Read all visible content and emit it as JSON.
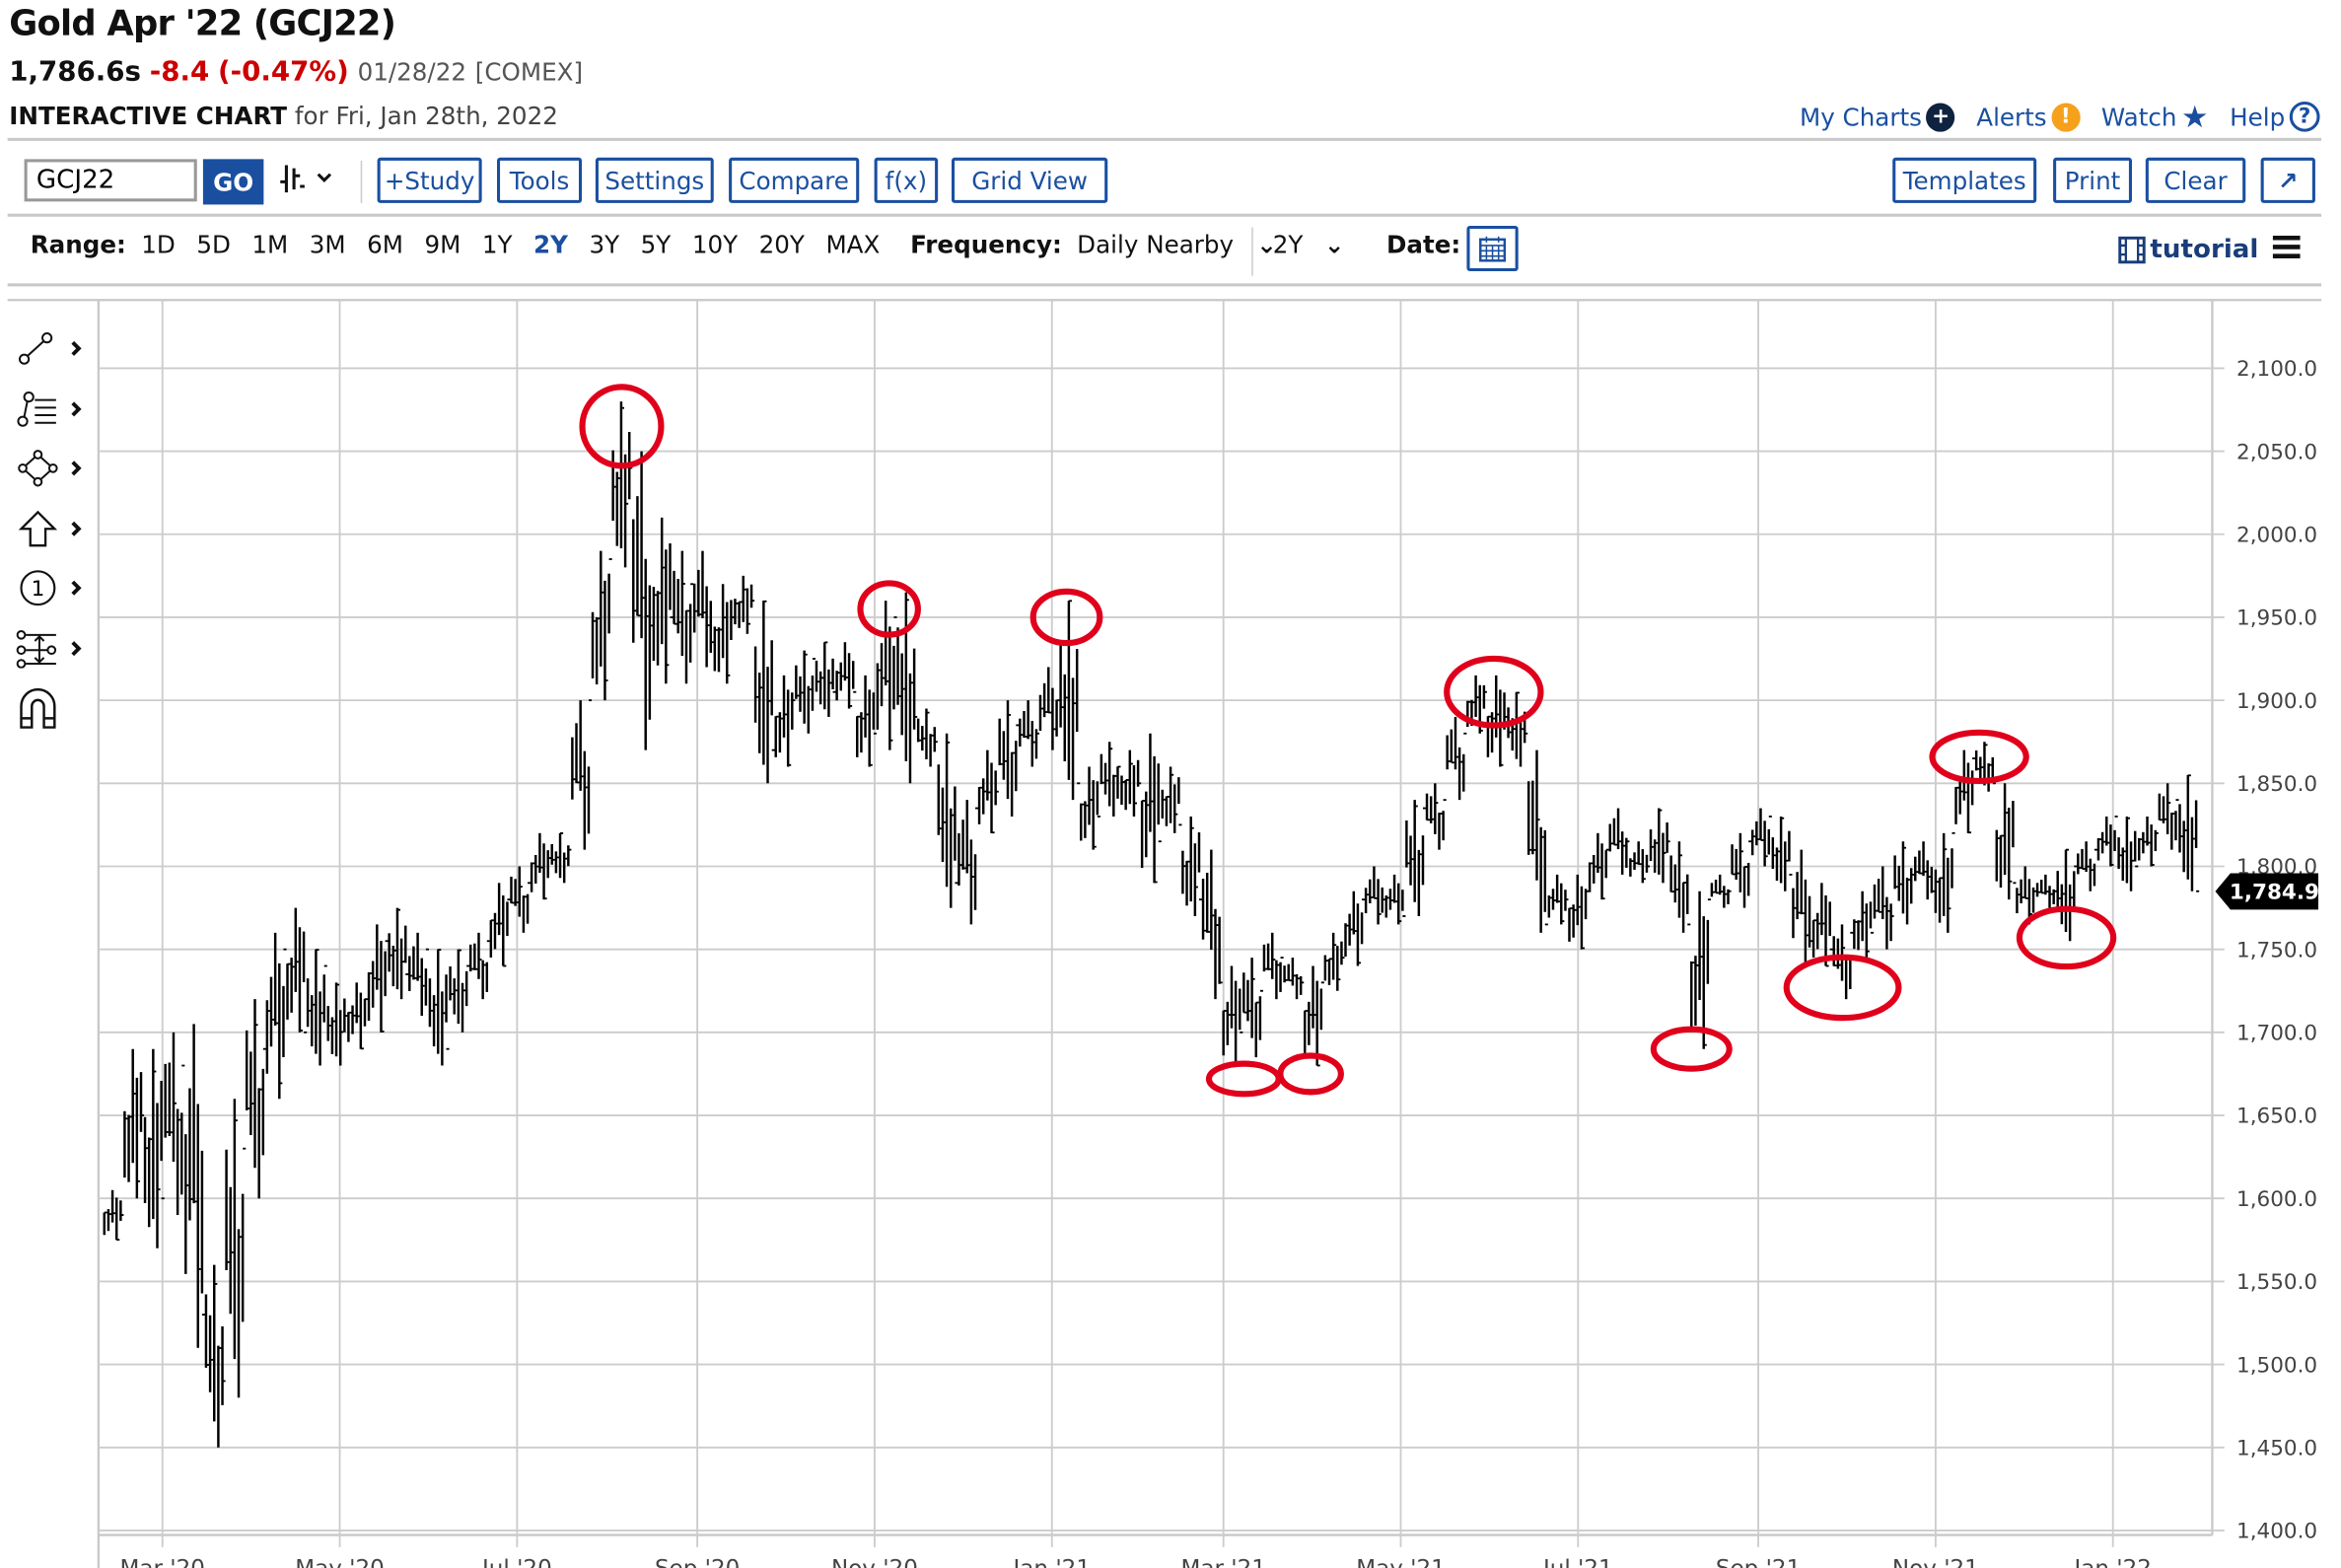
{
  "header": {
    "title": "Gold Apr '22 (GCJ22)",
    "last": "1,786.6s",
    "change": "-8.4",
    "change_pct": "(-0.47%)",
    "date": "01/28/22",
    "exchange": "[COMEX]",
    "subtitle_bold": "INTERACTIVE CHART",
    "subtitle_rest": "for Fri, Jan 28th, 2022"
  },
  "top_links": [
    {
      "label": "My Charts",
      "icon": "plus-circle-icon",
      "color": "#0f2340"
    },
    {
      "label": "Alerts",
      "icon": "exclamation-circle-icon",
      "color": "#f5a11c"
    },
    {
      "label": "Watch",
      "icon": "star-icon",
      "color": "#1a4fa0"
    },
    {
      "label": "Help",
      "icon": "question-circle-icon",
      "color": "#1a4fa0"
    }
  ],
  "toolbar": {
    "symbol_value": "GCJ22",
    "go_label": "GO",
    "chart_type_icon": "ohlc-bars-icon",
    "buttons": [
      "+Study",
      "Tools",
      "Settings",
      "Compare",
      "f(x)",
      "Grid View"
    ],
    "right_buttons": [
      "Templates",
      "Print",
      "Clear"
    ],
    "expand_icon": "expand-arrow-icon"
  },
  "range": {
    "label": "Range:",
    "options": [
      "1D",
      "5D",
      "1M",
      "3M",
      "6M",
      "9M",
      "1Y",
      "2Y",
      "3Y",
      "5Y",
      "10Y",
      "20Y",
      "MAX"
    ],
    "active": "2Y",
    "frequency_label": "Frequency:",
    "frequency_value": "Daily Nearby",
    "period_value": "2Y",
    "date_label": "Date:",
    "tutorial_label": "tutorial"
  },
  "colors": {
    "accent": "#1a4fa0",
    "negative": "#cc0000",
    "annotation": "#e0001b",
    "bars": "#000000",
    "grid": "#cccccc"
  },
  "chart_data": {
    "type": "ohlc-bar",
    "title": "",
    "ylim": [
      1400,
      2120
    ],
    "y_ticks": [
      "2,100.0",
      "2,050.0",
      "2,000.0",
      "1,950.0",
      "1,900.0",
      "1,850.0",
      "1,800.0",
      "1,750.0",
      "1,700.0",
      "1,650.0",
      "1,600.0",
      "1,550.0",
      "1,500.0",
      "1,450.0",
      "1,400.0"
    ],
    "y_tick_values": [
      2100,
      2050,
      2000,
      1950,
      1900,
      1850,
      1800,
      1750,
      1700,
      1650,
      1600,
      1550,
      1500,
      1450,
      1400
    ],
    "x_ticks": [
      "Mar '20",
      "May '20",
      "Jul '20",
      "Sep '20",
      "Nov '20",
      "Jan '21",
      "Mar '21",
      "May '21",
      "Jul '21",
      "Sep '21",
      "Nov '21",
      "Jan '22"
    ],
    "x_tick_dates": [
      "2020-03-01",
      "2020-05-01",
      "2020-07-01",
      "2020-09-01",
      "2020-11-01",
      "2021-01-01",
      "2021-03-01",
      "2021-05-01",
      "2021-07-01",
      "2021-09-01",
      "2021-11-01",
      "2022-01-01"
    ],
    "x_range": [
      "2020-02-08",
      "2022-01-31"
    ],
    "grid": true,
    "last_price_label": "1,784.9",
    "last_price": 1784.9,
    "bars_columns": [
      "week",
      "high",
      "low",
      "close"
    ],
    "bars": [
      [
        "2020-02-10",
        1605,
        1575,
        1590
      ],
      [
        "2020-02-17",
        1690,
        1600,
        1650
      ],
      [
        "2020-02-24",
        1690,
        1570,
        1600
      ],
      [
        "2020-03-02",
        1700,
        1590,
        1680
      ],
      [
        "2020-03-09",
        1705,
        1510,
        1530
      ],
      [
        "2020-03-16",
        1560,
        1450,
        1490
      ],
      [
        "2020-03-23",
        1660,
        1480,
        1630
      ],
      [
        "2020-03-30",
        1720,
        1600,
        1690
      ],
      [
        "2020-04-06",
        1760,
        1660,
        1750
      ],
      [
        "2020-04-13",
        1775,
        1700,
        1700
      ],
      [
        "2020-04-20",
        1750,
        1680,
        1740
      ],
      [
        "2020-04-27",
        1730,
        1680,
        1710
      ],
      [
        "2020-05-04",
        1730,
        1690,
        1720
      ],
      [
        "2020-05-11",
        1765,
        1700,
        1755
      ],
      [
        "2020-05-18",
        1775,
        1720,
        1735
      ],
      [
        "2020-05-25",
        1760,
        1710,
        1750
      ],
      [
        "2020-06-01",
        1750,
        1680,
        1690
      ],
      [
        "2020-06-08",
        1750,
        1700,
        1740
      ],
      [
        "2020-06-15",
        1760,
        1720,
        1755
      ],
      [
        "2020-06-22",
        1790,
        1740,
        1780
      ],
      [
        "2020-06-29",
        1800,
        1760,
        1790
      ],
      [
        "2020-07-06",
        1820,
        1780,
        1805
      ],
      [
        "2020-07-13",
        1820,
        1790,
        1810
      ],
      [
        "2020-07-20",
        1900,
        1810,
        1900
      ],
      [
        "2020-07-27",
        1990,
        1900,
        1985
      ],
      [
        "2020-08-03",
        2080,
        1980,
        2040
      ],
      [
        "2020-08-10",
        2050,
        1870,
        1945
      ],
      [
        "2020-08-17",
        2010,
        1910,
        1950
      ],
      [
        "2020-08-24",
        1990,
        1910,
        1970
      ],
      [
        "2020-08-31",
        1990,
        1920,
        1935
      ],
      [
        "2020-09-07",
        1970,
        1910,
        1950
      ],
      [
        "2020-09-14",
        1975,
        1940,
        1960
      ],
      [
        "2020-09-21",
        1960,
        1850,
        1870
      ],
      [
        "2020-09-28",
        1915,
        1860,
        1900
      ],
      [
        "2020-10-05",
        1930,
        1880,
        1925
      ],
      [
        "2020-10-12",
        1935,
        1890,
        1905
      ],
      [
        "2020-10-19",
        1935,
        1895,
        1905
      ],
      [
        "2020-10-26",
        1915,
        1860,
        1880
      ],
      [
        "2020-11-02",
        1960,
        1870,
        1950
      ],
      [
        "2020-11-09",
        1965,
        1850,
        1890
      ],
      [
        "2020-11-16",
        1895,
        1860,
        1875
      ],
      [
        "2020-11-23",
        1880,
        1775,
        1790
      ],
      [
        "2020-11-30",
        1840,
        1765,
        1835
      ],
      [
        "2020-12-07",
        1870,
        1820,
        1845
      ],
      [
        "2020-12-14",
        1900,
        1830,
        1885
      ],
      [
        "2020-12-21",
        1900,
        1860,
        1880
      ],
      [
        "2020-12-28",
        1920,
        1870,
        1900
      ],
      [
        "2021-01-04",
        1960,
        1840,
        1850
      ],
      [
        "2021-01-11",
        1860,
        1810,
        1830
      ],
      [
        "2021-01-18",
        1875,
        1830,
        1860
      ],
      [
        "2021-01-25",
        1870,
        1830,
        1850
      ],
      [
        "2021-02-01",
        1880,
        1790,
        1815
      ],
      [
        "2021-02-08",
        1860,
        1820,
        1825
      ],
      [
        "2021-02-15",
        1830,
        1770,
        1780
      ],
      [
        "2021-02-22",
        1810,
        1720,
        1730
      ],
      [
        "2021-03-01",
        1740,
        1680,
        1700
      ],
      [
        "2021-03-08",
        1745,
        1685,
        1725
      ],
      [
        "2021-03-15",
        1760,
        1720,
        1745
      ],
      [
        "2021-03-22",
        1745,
        1720,
        1730
      ],
      [
        "2021-03-29",
        1740,
        1680,
        1730
      ],
      [
        "2021-04-05",
        1760,
        1725,
        1745
      ],
      [
        "2021-04-12",
        1785,
        1740,
        1780
      ],
      [
        "2021-04-19",
        1800,
        1765,
        1780
      ],
      [
        "2021-04-26",
        1795,
        1765,
        1770
      ],
      [
        "2021-05-03",
        1840,
        1770,
        1835
      ],
      [
        "2021-05-10",
        1850,
        1810,
        1840
      ],
      [
        "2021-05-17",
        1890,
        1840,
        1880
      ],
      [
        "2021-05-24",
        1915,
        1880,
        1905
      ],
      [
        "2021-05-31",
        1915,
        1860,
        1890
      ],
      [
        "2021-06-07",
        1905,
        1860,
        1880
      ],
      [
        "2021-06-14",
        1870,
        1760,
        1765
      ],
      [
        "2021-06-21",
        1795,
        1765,
        1780
      ],
      [
        "2021-06-28",
        1795,
        1750,
        1785
      ],
      [
        "2021-07-05",
        1820,
        1780,
        1810
      ],
      [
        "2021-07-12",
        1835,
        1795,
        1815
      ],
      [
        "2021-07-19",
        1815,
        1790,
        1800
      ],
      [
        "2021-07-26",
        1835,
        1790,
        1815
      ],
      [
        "2021-08-02",
        1815,
        1760,
        1765
      ],
      [
        "2021-08-09",
        1785,
        1690,
        1780
      ],
      [
        "2021-08-16",
        1795,
        1775,
        1785
      ],
      [
        "2021-08-23",
        1820,
        1775,
        1815
      ],
      [
        "2021-08-30",
        1835,
        1800,
        1830
      ],
      [
        "2021-09-06",
        1830,
        1785,
        1795
      ],
      [
        "2021-09-13",
        1810,
        1740,
        1755
      ],
      [
        "2021-09-20",
        1790,
        1740,
        1750
      ],
      [
        "2021-09-27",
        1765,
        1720,
        1760
      ],
      [
        "2021-10-04",
        1785,
        1745,
        1760
      ],
      [
        "2021-10-11",
        1800,
        1750,
        1770
      ],
      [
        "2021-10-18",
        1815,
        1765,
        1795
      ],
      [
        "2021-10-25",
        1815,
        1780,
        1785
      ],
      [
        "2021-11-01",
        1820,
        1760,
        1820
      ],
      [
        "2021-11-08",
        1870,
        1820,
        1865
      ],
      [
        "2021-11-15",
        1875,
        1845,
        1850
      ],
      [
        "2021-11-22",
        1850,
        1780,
        1790
      ],
      [
        "2021-11-29",
        1800,
        1765,
        1785
      ],
      [
        "2021-12-06",
        1795,
        1775,
        1785
      ],
      [
        "2021-12-13",
        1810,
        1755,
        1800
      ],
      [
        "2021-12-20",
        1815,
        1785,
        1810
      ],
      [
        "2021-12-27",
        1830,
        1800,
        1830
      ],
      [
        "2022-01-03",
        1830,
        1785,
        1800
      ],
      [
        "2022-01-10",
        1830,
        1800,
        1820
      ],
      [
        "2022-01-17",
        1850,
        1810,
        1840
      ],
      [
        "2022-01-24",
        1855,
        1785,
        1785
      ]
    ],
    "annotations": [
      {
        "type": "ellipse",
        "date": "2020-08-06",
        "price": 2065
      },
      {
        "type": "ellipse",
        "date": "2020-11-06",
        "price": 1955
      },
      {
        "type": "ellipse",
        "date": "2021-01-06",
        "price": 1950
      },
      {
        "type": "ellipse",
        "date": "2021-03-08",
        "price": 1672
      },
      {
        "type": "ellipse",
        "date": "2021-03-31",
        "price": 1675
      },
      {
        "type": "ellipse",
        "date": "2021-06-02",
        "price": 1905
      },
      {
        "type": "ellipse",
        "date": "2021-08-09",
        "price": 1690
      },
      {
        "type": "ellipse",
        "date": "2021-09-30",
        "price": 1727
      },
      {
        "type": "ellipse",
        "date": "2021-11-16",
        "price": 1866
      },
      {
        "type": "ellipse",
        "date": "2021-12-16",
        "price": 1757
      }
    ]
  },
  "drawing_tools": [
    "line-tool-icon",
    "fib-retracement-icon",
    "shape-tool-icon",
    "arrow-up-icon",
    "numbered-marker-icon",
    "measure-tool-icon",
    "magnet-icon"
  ]
}
